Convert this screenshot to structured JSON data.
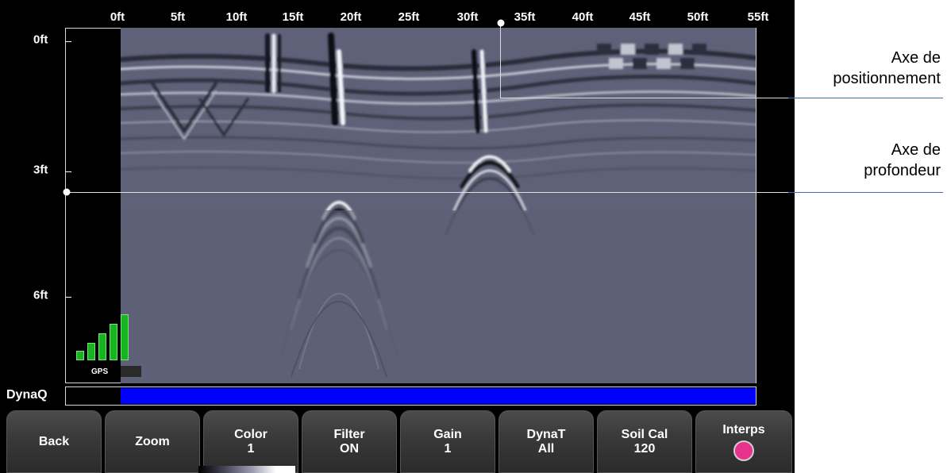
{
  "screen": {
    "top_ruler": [
      "0ft",
      "5ft",
      "10ft",
      "15ft",
      "20ft",
      "25ft",
      "30ft",
      "35ft",
      "40ft",
      "45ft",
      "50ft",
      "55ft"
    ],
    "depth_ruler": [
      "0ft",
      "3ft",
      "6ft"
    ],
    "gps_label": "GPS",
    "gps_signal_bars": 5,
    "dynaq_label": "DynaQ",
    "colors": {
      "background": "#000000",
      "scan_background": "#5d6076",
      "dynaq_bar": "#0000ff",
      "gps_bar": "#17b320",
      "interp_indicator": "#e7318a"
    }
  },
  "buttons": [
    {
      "label": "Back",
      "value": ""
    },
    {
      "label": "Zoom",
      "value": ""
    },
    {
      "label": "Color",
      "value": "1"
    },
    {
      "label": "Filter",
      "value": "ON"
    },
    {
      "label": "Gain",
      "value": "1"
    },
    {
      "label": "DynaT",
      "value": "All"
    },
    {
      "label": "Soil Cal",
      "value": "120"
    },
    {
      "label": "Interps",
      "value": ""
    }
  ],
  "annotations": {
    "positioning_axis": [
      "Axe de",
      "positionnement"
    ],
    "depth_axis": [
      "Axe de",
      "profondeur"
    ]
  }
}
